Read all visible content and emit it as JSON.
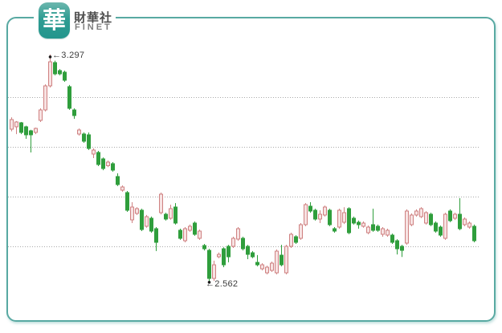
{
  "logo": {
    "glyph": "華",
    "company": "財華社",
    "brand": "FINET"
  },
  "annotations": {
    "high": {
      "label": "←3.297",
      "value": 3.297
    },
    "low": {
      "label": "←2.562",
      "value": 2.562
    }
  },
  "colors": {
    "up_stroke": "#cf8181",
    "up_fill": "#f7e3e3",
    "down": "#2f9e3c",
    "grid": "#a9a9a9",
    "frame": "#58a9a2",
    "annotation": "#3c3c3c",
    "marker": "#1c1c1c",
    "logo_teal": "#2b9c93"
  },
  "chart_data": {
    "type": "candlestick",
    "title": "",
    "xlabel": "",
    "ylabel": "",
    "ylim": [
      2.52,
      3.36
    ],
    "grid": "dotted-horizontal",
    "gridline_values": [
      3.16,
      3.0,
      2.84,
      2.68
    ],
    "high_marker": {
      "index": 8,
      "value": 3.297
    },
    "low_marker": {
      "index": 41,
      "value": 2.562
    },
    "candles": [
      [
        3.057,
        3.095,
        3.05,
        3.088
      ],
      [
        3.065,
        3.083,
        3.041,
        3.08
      ],
      [
        3.077,
        3.08,
        3.041,
        3.046
      ],
      [
        3.065,
        3.068,
        3.026,
        3.039
      ],
      [
        3.052,
        3.055,
        2.982,
        3.039
      ],
      [
        3.046,
        3.062,
        3.041,
        3.059
      ],
      [
        3.085,
        3.124,
        3.08,
        3.119
      ],
      [
        3.119,
        3.201,
        3.114,
        3.196
      ],
      [
        3.196,
        3.297,
        3.191,
        3.274
      ],
      [
        3.271,
        3.277,
        3.23,
        3.235
      ],
      [
        3.245,
        3.25,
        3.23,
        3.235
      ],
      [
        3.24,
        3.245,
        3.209,
        3.214
      ],
      [
        3.194,
        3.199,
        3.119,
        3.124
      ],
      [
        3.119,
        3.124,
        3.09,
        3.101
      ],
      [
        3.041,
        3.059,
        3.036,
        3.054
      ],
      [
        3.041,
        3.046,
        3.013,
        3.018
      ],
      [
        3.039,
        3.046,
        2.99,
        2.995
      ],
      [
        2.977,
        2.995,
        2.964,
        2.99
      ],
      [
        2.982,
        2.987,
        2.938,
        2.943
      ],
      [
        2.961,
        2.966,
        2.925,
        2.93
      ],
      [
        2.94,
        2.956,
        2.935,
        2.951
      ],
      [
        2.946,
        2.951,
        2.92,
        2.925
      ],
      [
        2.905,
        2.915,
        2.874,
        2.879
      ],
      [
        2.861,
        2.876,
        2.856,
        2.871
      ],
      [
        2.853,
        2.858,
        2.791,
        2.796
      ],
      [
        2.765,
        2.822,
        2.755,
        2.806
      ],
      [
        2.786,
        2.806,
        2.781,
        2.801
      ],
      [
        2.796,
        2.801,
        2.729,
        2.734
      ],
      [
        2.745,
        2.781,
        2.74,
        2.776
      ],
      [
        2.771,
        2.776,
        2.724,
        2.729
      ],
      [
        2.737,
        2.742,
        2.665,
        2.693
      ],
      [
        2.788,
        2.853,
        2.783,
        2.848
      ],
      [
        2.783,
        2.788,
        2.763,
        2.768
      ],
      [
        2.771,
        2.814,
        2.766,
        2.801
      ],
      [
        2.806,
        2.819,
        2.75,
        2.755
      ],
      [
        2.732,
        2.737,
        2.701,
        2.706
      ],
      [
        2.698,
        2.742,
        2.693,
        2.737
      ],
      [
        2.732,
        2.75,
        2.727,
        2.745
      ],
      [
        2.755,
        2.76,
        2.714,
        2.719
      ],
      [
        2.706,
        2.734,
        2.701,
        2.729
      ],
      [
        2.683,
        2.688,
        2.667,
        2.672
      ],
      [
        2.667,
        2.672,
        2.562,
        2.577
      ],
      [
        2.577,
        2.634,
        2.569,
        2.621
      ],
      [
        2.647,
        2.66,
        2.642,
        2.654
      ],
      [
        2.672,
        2.677,
        2.613,
        2.621
      ],
      [
        2.68,
        2.685,
        2.629,
        2.647
      ],
      [
        2.68,
        2.711,
        2.675,
        2.706
      ],
      [
        2.703,
        2.742,
        2.698,
        2.737
      ],
      [
        2.706,
        2.711,
        2.667,
        2.672
      ],
      [
        2.68,
        2.685,
        2.639,
        2.654
      ],
      [
        2.66,
        2.665,
        2.642,
        2.647
      ],
      [
        2.629,
        2.652,
        2.616,
        2.621
      ],
      [
        2.608,
        2.626,
        2.603,
        2.621
      ],
      [
        2.595,
        2.618,
        2.59,
        2.613
      ],
      [
        2.603,
        2.631,
        2.598,
        2.626
      ],
      [
        2.595,
        2.67,
        2.59,
        2.665
      ],
      [
        2.652,
        2.685,
        2.616,
        2.621
      ],
      [
        2.595,
        2.685,
        2.59,
        2.68
      ],
      [
        2.68,
        2.724,
        2.675,
        2.719
      ],
      [
        2.711,
        2.716,
        2.688,
        2.693
      ],
      [
        2.706,
        2.755,
        2.701,
        2.75
      ],
      [
        2.75,
        2.819,
        2.745,
        2.814
      ],
      [
        2.809,
        2.822,
        2.788,
        2.793
      ],
      [
        2.796,
        2.801,
        2.763,
        2.768
      ],
      [
        2.768,
        2.796,
        2.755,
        2.783
      ],
      [
        2.781,
        2.811,
        2.776,
        2.806
      ],
      [
        2.796,
        2.801,
        2.745,
        2.75
      ],
      [
        2.737,
        2.742,
        2.724,
        2.729
      ],
      [
        2.742,
        2.801,
        2.737,
        2.796
      ],
      [
        2.757,
        2.806,
        2.752,
        2.788
      ],
      [
        2.801,
        2.806,
        2.719,
        2.724
      ],
      [
        2.771,
        2.776,
        2.75,
        2.755
      ],
      [
        2.758,
        2.763,
        2.737,
        2.75
      ],
      [
        2.745,
        2.76,
        2.74,
        2.755
      ],
      [
        2.724,
        2.747,
        2.719,
        2.742
      ],
      [
        2.75,
        2.801,
        2.727,
        2.732
      ],
      [
        2.745,
        2.75,
        2.727,
        2.732
      ],
      [
        2.719,
        2.742,
        2.711,
        2.737
      ],
      [
        2.716,
        2.737,
        2.711,
        2.732
      ],
      [
        2.716,
        2.721,
        2.688,
        2.693
      ],
      [
        2.698,
        2.703,
        2.654,
        2.672
      ],
      [
        2.68,
        2.685,
        2.646,
        2.667
      ],
      [
        2.69,
        2.799,
        2.685,
        2.794
      ],
      [
        2.75,
        2.786,
        2.745,
        2.781
      ],
      [
        2.781,
        2.799,
        2.776,
        2.793
      ],
      [
        2.776,
        2.806,
        2.771,
        2.801
      ],
      [
        2.755,
        2.793,
        2.75,
        2.788
      ],
      [
        2.783,
        2.788,
        2.745,
        2.75
      ],
      [
        2.755,
        2.76,
        2.724,
        2.729
      ],
      [
        2.742,
        2.747,
        2.711,
        2.716
      ],
      [
        2.706,
        2.788,
        2.701,
        2.783
      ],
      [
        2.794,
        2.799,
        2.758,
        2.763
      ],
      [
        2.77,
        2.788,
        2.765,
        2.783
      ],
      [
        2.783,
        2.835,
        2.732,
        2.737
      ],
      [
        2.75,
        2.773,
        2.745,
        2.768
      ],
      [
        2.742,
        2.76,
        2.737,
        2.755
      ],
      [
        2.745,
        2.75,
        2.693,
        2.698
      ]
    ]
  }
}
